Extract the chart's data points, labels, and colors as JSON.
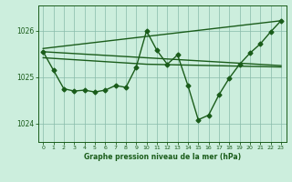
{
  "background_color": "#cceedd",
  "grid_color": "#88bbaa",
  "line_color": "#1a5c1a",
  "title": "Graphe pression niveau de la mer (hPa)",
  "xlim": [
    -0.5,
    23.5
  ],
  "ylim": [
    1023.6,
    1026.55
  ],
  "yticks": [
    1024,
    1025,
    1026
  ],
  "xticks": [
    0,
    1,
    2,
    3,
    4,
    5,
    6,
    7,
    8,
    9,
    10,
    11,
    12,
    13,
    14,
    15,
    16,
    17,
    18,
    19,
    20,
    21,
    22,
    23
  ],
  "series1_x": [
    0,
    1,
    2,
    3,
    4,
    5,
    6,
    7,
    8,
    9,
    10,
    11,
    12,
    13,
    14,
    15,
    16,
    17,
    18,
    19,
    20,
    21,
    22,
    23
  ],
  "series1_y": [
    1025.55,
    1025.15,
    1024.75,
    1024.7,
    1024.72,
    1024.68,
    1024.72,
    1024.82,
    1024.78,
    1025.22,
    1026.0,
    1025.58,
    1025.28,
    1025.48,
    1024.82,
    1024.08,
    1024.18,
    1024.62,
    1024.98,
    1025.28,
    1025.52,
    1025.72,
    1025.98,
    1026.22
  ],
  "series2_x": [
    0,
    23
  ],
  "series2_y": [
    1025.55,
    1025.25
  ],
  "series3_x": [
    0,
    23
  ],
  "series3_y": [
    1025.62,
    1026.22
  ],
  "series4_x": [
    0,
    10,
    23
  ],
  "series4_y": [
    1025.42,
    1025.28,
    1025.22
  ],
  "marker": "D",
  "markersize": 2.5,
  "linewidth": 1.0
}
